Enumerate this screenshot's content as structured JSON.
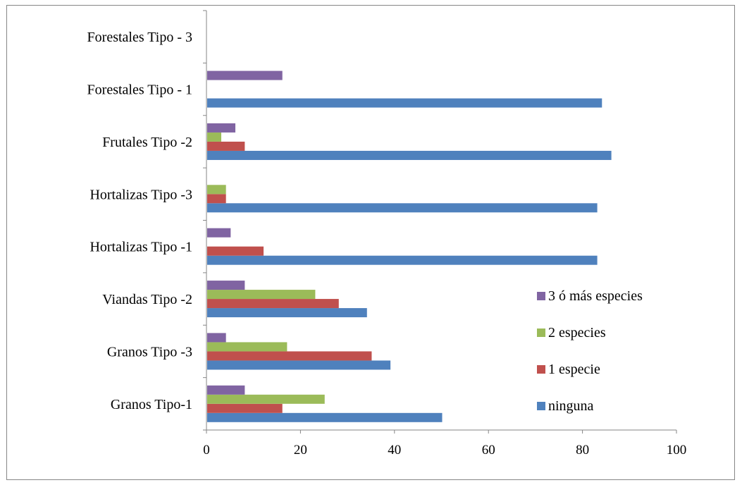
{
  "chart_data": {
    "type": "bar",
    "orientation": "horizontal",
    "title": "",
    "xlabel": "",
    "ylabel": "",
    "categories": [
      "Granos Tipo-1",
      "Granos Tipo -3",
      "Viandas Tipo -2",
      "Hortalizas Tipo -1",
      "Hortalizas Tipo -3",
      "Frutales Tipo -2",
      "Forestales Tipo - 1",
      "Forestales Tipo - 3"
    ],
    "series": [
      {
        "name": "ninguna",
        "color": "#4F81BD",
        "values": [
          50,
          39,
          34,
          83,
          83,
          86,
          84,
          0
        ]
      },
      {
        "name": "1 especie",
        "color": "#C0504D",
        "values": [
          16,
          35,
          28,
          12,
          4,
          8,
          0,
          0
        ]
      },
      {
        "name": "2 especies",
        "color": "#9BBB59",
        "values": [
          25,
          17,
          23,
          0,
          4,
          3,
          0,
          0
        ]
      },
      {
        "name": "3 ó más especies",
        "color": "#8064A2",
        "values": [
          8,
          4,
          8,
          5,
          0,
          6,
          16,
          0
        ]
      }
    ],
    "xlim": [
      0,
      100
    ],
    "xticks": [
      0,
      20,
      40,
      60,
      80,
      100
    ],
    "grid": false,
    "legend_position": "right"
  }
}
